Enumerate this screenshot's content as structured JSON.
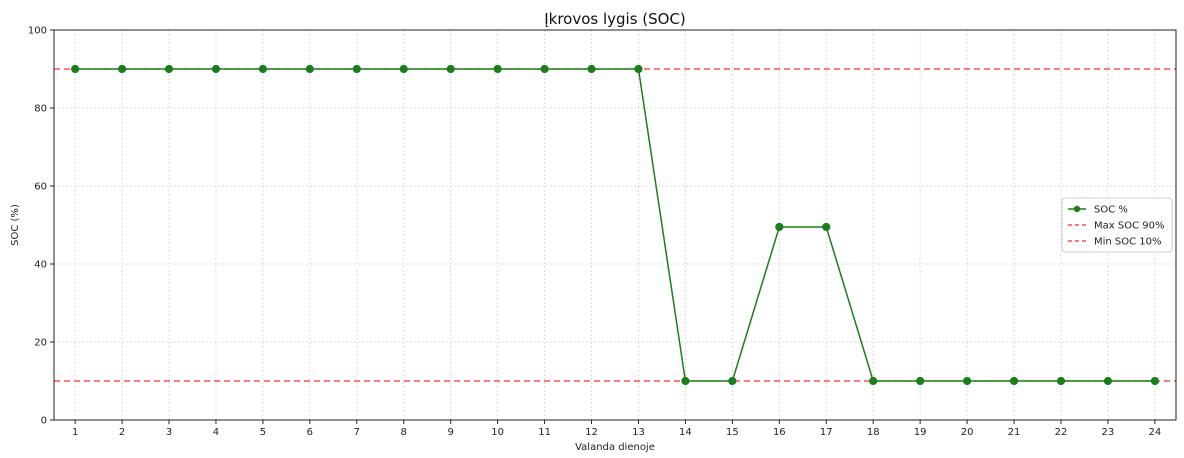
{
  "chart_data": {
    "type": "line",
    "title": "Įkrovos lygis (SOC)",
    "xlabel": "Valanda dienoje",
    "ylabel": "SOC (%)",
    "x": [
      1,
      2,
      3,
      4,
      5,
      6,
      7,
      8,
      9,
      10,
      11,
      12,
      13,
      14,
      15,
      16,
      17,
      18,
      19,
      20,
      21,
      22,
      23,
      24
    ],
    "xlim": [
      0.55,
      24.45
    ],
    "ylim": [
      0,
      100
    ],
    "yticks": [
      0,
      20,
      40,
      60,
      80,
      100
    ],
    "grid": true,
    "legend_position": "center-right",
    "series": [
      {
        "name": "SOC %",
        "color": "#1a7f1a",
        "marker": "circle",
        "values": [
          90,
          90,
          90,
          90,
          90,
          90,
          90,
          90,
          90,
          90,
          90,
          90,
          90,
          10,
          10,
          49.5,
          49.5,
          10,
          10,
          10,
          10,
          10,
          10,
          10
        ]
      }
    ],
    "reference_lines": [
      {
        "name": "Max SOC 90%",
        "y": 90,
        "color": "#ff2b2b",
        "style": "dashed"
      },
      {
        "name": "Min SOC 10%",
        "y": 10,
        "color": "#ff2b2b",
        "style": "dashed"
      }
    ]
  }
}
